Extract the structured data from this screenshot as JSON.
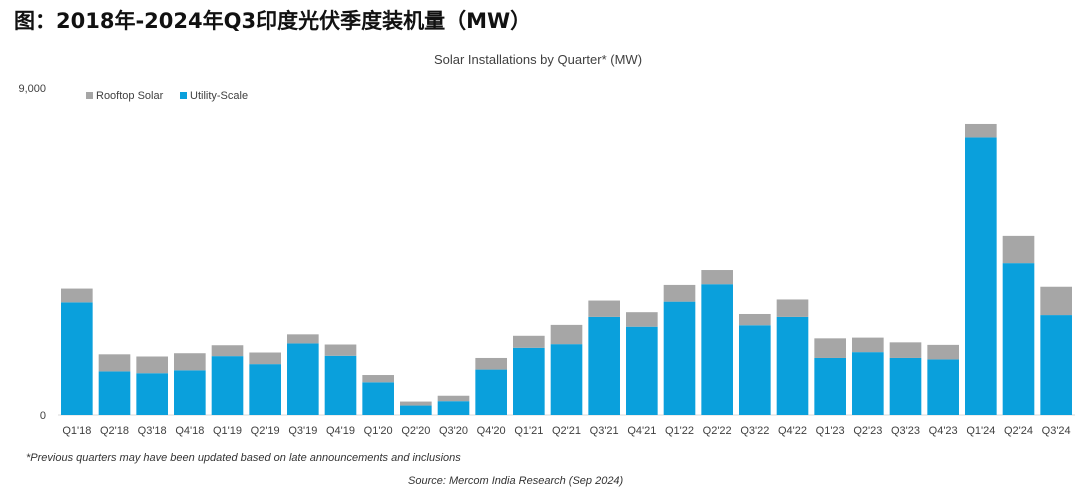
{
  "figure_title": "图：2018年-2024年Q3印度光伏季度装机量（MW）",
  "footnote": "*Previous quarters may have been updated based on late announcements and inclusions",
  "source": "Source: Mercom India Research (Sep 2024)",
  "colors": {
    "rooftop": "#a6a6a6",
    "utility": "#0aa0dc"
  },
  "chart_data": {
    "type": "bar",
    "stacked": true,
    "title": "Solar Installations by Quarter* (MW)",
    "ylim": [
      0,
      9000
    ],
    "yticks": [
      "0",
      "9,000"
    ],
    "legend_position": "top-left",
    "grid": false,
    "categories": [
      "Q1'18",
      "Q2'18",
      "Q3'18",
      "Q4'18",
      "Q1'19",
      "Q2'19",
      "Q3'19",
      "Q4'19",
      "Q1'20",
      "Q2'20",
      "Q3'20",
      "Q4'20",
      "Q1'21",
      "Q2'21",
      "Q3'21",
      "Q4'21",
      "Q1'22",
      "Q2'22",
      "Q3'22",
      "Q4'22",
      "Q1'23",
      "Q2'23",
      "Q3'23",
      "Q4'23",
      "Q1'24",
      "Q2'24",
      "Q3'24"
    ],
    "series": [
      {
        "name": "Utility-Scale",
        "values": [
          3100,
          1200,
          1150,
          1230,
          1620,
          1400,
          1970,
          1630,
          900,
          260,
          380,
          1250,
          1850,
          1950,
          2700,
          2430,
          3120,
          3600,
          2470,
          2700,
          1570,
          1730,
          1570,
          1530,
          7640,
          4180,
          2750
        ]
      },
      {
        "name": "Rooftop Solar",
        "values": [
          380,
          470,
          460,
          470,
          300,
          320,
          250,
          310,
          200,
          110,
          150,
          320,
          330,
          530,
          450,
          400,
          460,
          390,
          310,
          480,
          540,
          400,
          430,
          400,
          370,
          750,
          780
        ]
      }
    ]
  }
}
